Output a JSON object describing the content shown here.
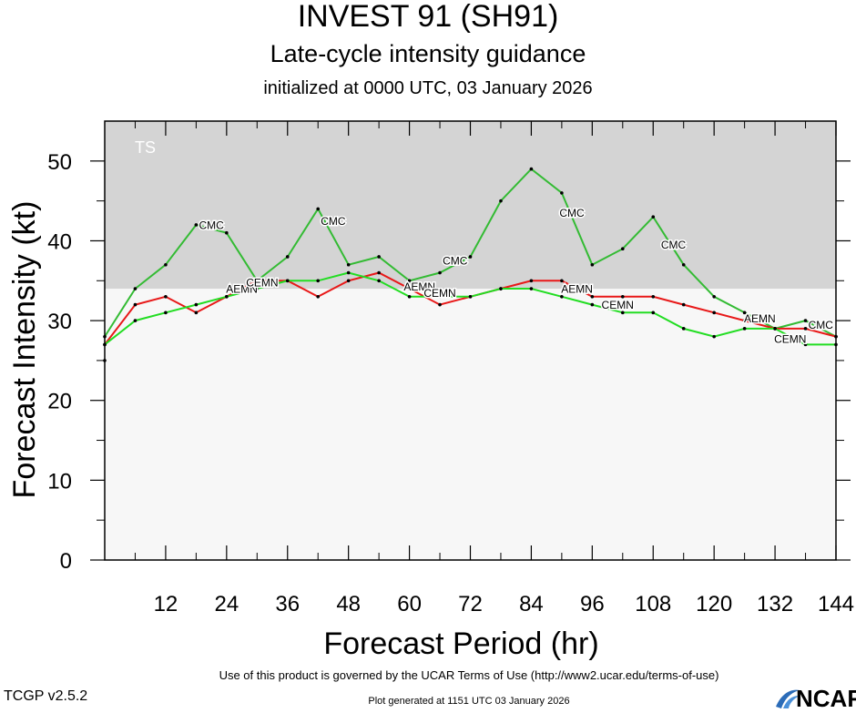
{
  "title": "INVEST 91 (SH91)",
  "subtitle": "Late-cycle intensity guidance",
  "init_line": "initialized at 0000 UTC, 03 January 2026",
  "footer": {
    "terms": "Use of this product is governed by the UCAR Terms of Use (http://www2.ucar.edu/terms-of-use)",
    "version": "TCGP v2.5.2",
    "generated": "Plot generated at 1151 UTC   03 January 2026",
    "logo": "NCAR"
  },
  "colors": {
    "cmc": "#33bb33",
    "aemn": "#e81818",
    "cemn": "#22dd22",
    "ts_band": "#d4d4d4",
    "plot_bg": "#f7f7f7"
  },
  "chart_data": {
    "type": "line",
    "xlabel": "Forecast Period (hr)",
    "ylabel": "Forecast Intensity (kt)",
    "xlim": [
      0,
      144
    ],
    "ylim": [
      0,
      55
    ],
    "xticks": [
      12,
      24,
      36,
      48,
      60,
      72,
      84,
      96,
      108,
      120,
      132,
      144
    ],
    "yticks": [
      0,
      10,
      20,
      30,
      40,
      50
    ],
    "bands": [
      {
        "label": "TS",
        "from": 34,
        "to": 55
      }
    ],
    "initial_point": {
      "x": 0,
      "y": 25
    },
    "series": [
      {
        "name": "CMC",
        "color": "#33bb33",
        "x": [
          0,
          6,
          12,
          18,
          24,
          30,
          36,
          42,
          48,
          54,
          60,
          66,
          72,
          78,
          84,
          90,
          96,
          102,
          108,
          114,
          120,
          126,
          132,
          138,
          144
        ],
        "y": [
          28,
          34,
          37,
          42,
          41,
          35,
          38,
          44,
          37,
          38,
          35,
          36,
          38,
          45,
          49,
          46,
          37,
          39,
          43,
          37,
          33,
          31,
          29,
          30,
          28
        ],
        "label_positions": [
          {
            "x": 21,
            "y": 41.5
          },
          {
            "x": 45,
            "y": 42
          },
          {
            "x": 69,
            "y": 37
          },
          {
            "x": 92,
            "y": 43
          },
          {
            "x": 112,
            "y": 39
          },
          {
            "x": 141,
            "y": 29
          }
        ]
      },
      {
        "name": "AEMN",
        "color": "#e81818",
        "x": [
          0,
          6,
          12,
          18,
          24,
          30,
          36,
          42,
          48,
          54,
          60,
          66,
          72,
          78,
          84,
          90,
          96,
          102,
          108,
          114,
          120,
          126,
          132,
          138,
          144
        ],
        "y": [
          27,
          32,
          33,
          31,
          33,
          35,
          35,
          33,
          35,
          36,
          34,
          32,
          33,
          34,
          35,
          35,
          33,
          33,
          33,
          32,
          31,
          30,
          29,
          29,
          28
        ],
        "label_positions": [
          {
            "x": 27,
            "y": 33.5
          },
          {
            "x": 62,
            "y": 33.8
          },
          {
            "x": 93,
            "y": 33.5
          },
          {
            "x": 129,
            "y": 29.8
          }
        ]
      },
      {
        "name": "CEMN",
        "color": "#22dd22",
        "x": [
          0,
          6,
          12,
          18,
          24,
          30,
          36,
          42,
          48,
          54,
          60,
          66,
          72,
          78,
          84,
          90,
          96,
          102,
          108,
          114,
          120,
          126,
          132,
          138,
          144
        ],
        "y": [
          27,
          30,
          31,
          32,
          33,
          34,
          35,
          35,
          36,
          35,
          33,
          33,
          33,
          34,
          34,
          33,
          32,
          31,
          31,
          29,
          28,
          29,
          29,
          27,
          27
        ],
        "label_positions": [
          {
            "x": 31,
            "y": 34.3
          },
          {
            "x": 66,
            "y": 33
          },
          {
            "x": 101,
            "y": 31.5
          },
          {
            "x": 135,
            "y": 27.2
          }
        ]
      }
    ]
  }
}
